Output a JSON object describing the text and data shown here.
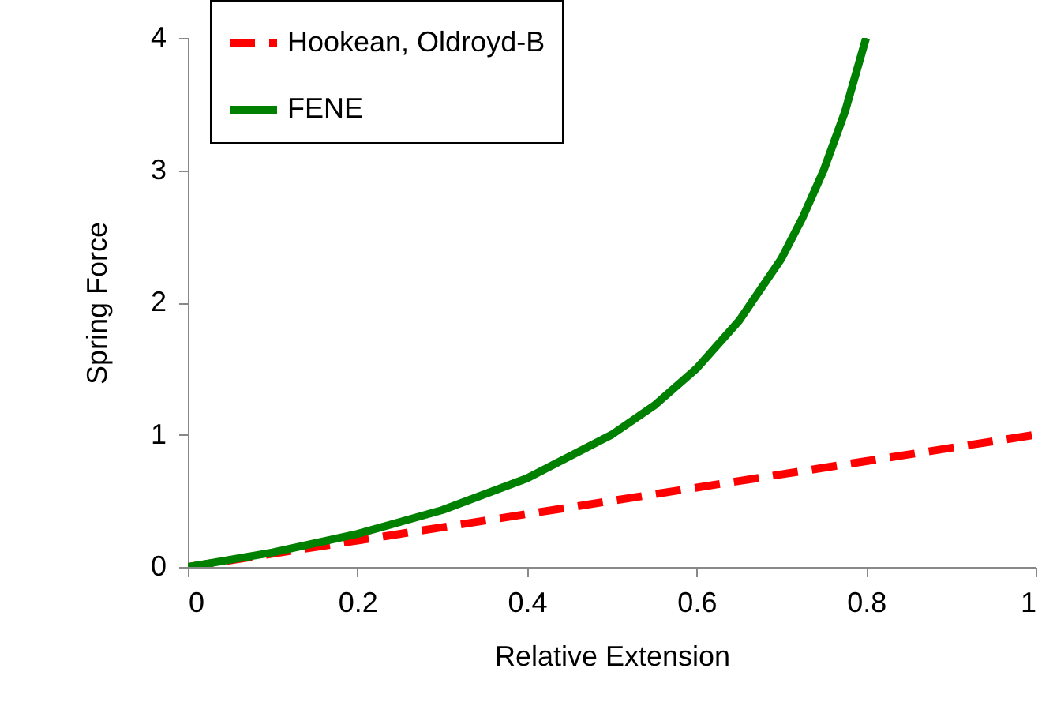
{
  "chart_data": {
    "type": "line",
    "xlabel": "Relative Extension",
    "ylabel": "Spring Force",
    "xlim": [
      0,
      1
    ],
    "xticks": [
      {
        "value": 0,
        "label": "0"
      },
      {
        "value": 0.2,
        "label": "0.2"
      },
      {
        "value": 0.4,
        "label": "0.4"
      },
      {
        "value": 0.6,
        "label": "0.6"
      },
      {
        "value": 0.8,
        "label": "0.8"
      },
      {
        "value": 1,
        "label": "1"
      }
    ],
    "ylim": [
      0,
      4
    ],
    "yticks": [
      0,
      1,
      2,
      3,
      4
    ],
    "grid": false,
    "legend": "top left",
    "marker": "none",
    "series": [
      {
        "name": "Hookean, Oldroyd-B",
        "color": "#ff0000",
        "line_style": "dashed",
        "x": [
          0,
          0.2,
          0.4,
          0.6,
          0.8,
          1
        ],
        "values": [
          0,
          0.2,
          0.4,
          0.6,
          0.8,
          1
        ]
      },
      {
        "name": "FENE",
        "color": "#008000",
        "line_style": "solid",
        "x": [
          0,
          0.1,
          0.2,
          0.3,
          0.4,
          0.5,
          0.55,
          0.6,
          0.65,
          0.7,
          0.725,
          0.75,
          0.775,
          0.8
        ],
        "values": [
          0,
          0.11,
          0.25,
          0.43,
          0.67,
          1,
          1.22,
          1.5,
          1.86,
          2.33,
          2.64,
          3,
          3.44,
          4
        ]
      }
    ]
  }
}
